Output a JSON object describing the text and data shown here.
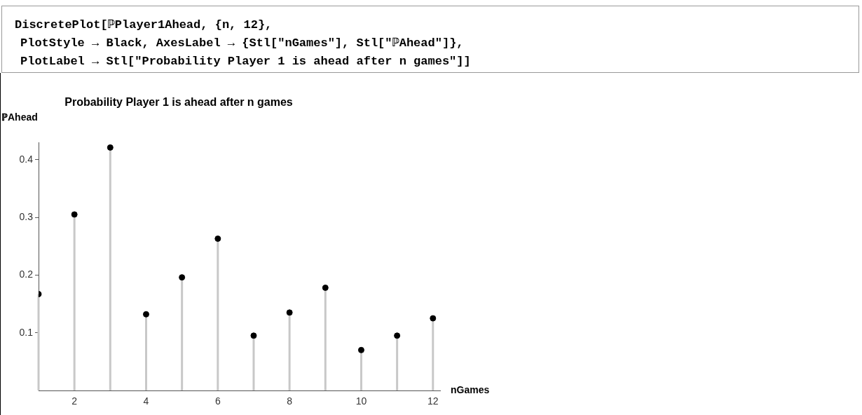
{
  "chart_data": {
    "type": "lollipop",
    "title": "Probability Player 1 is ahead after n games",
    "xlabel": "nGames",
    "ylabel": "ℙAhead",
    "annotations": [
      "DiscretePlot[ℙPlayer1Ahead, {n, 12},",
      "PlotStyle → Black, AxesLabel → {Stl[\"nGames\"], Stl[\"ℙAhead\"]},",
      "PlotLabel → Stl[\"Probability Player 1 is ahead after n games\"]]"
    ],
    "x": [
      1,
      2,
      3,
      4,
      5,
      6,
      7,
      8,
      9,
      10,
      11,
      12
    ],
    "series": [
      {
        "color": "#000000",
        "values": [
          0.167,
          0.305,
          0.421,
          0.132,
          0.196,
          0.263,
          0.095,
          0.135,
          0.178,
          0.07,
          0.095,
          0.125
        ]
      }
    ],
    "xlim": [
      1,
      12.2
    ],
    "xticks": [
      2,
      4,
      6,
      8,
      10,
      12
    ],
    "ylim": [
      0,
      0.43
    ],
    "yticks": [
      0.1,
      0.2,
      0.3,
      0.4
    ],
    "marker": "circle",
    "legend": false
  }
}
